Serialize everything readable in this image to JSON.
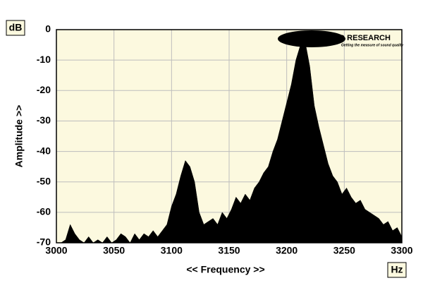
{
  "chart_data": {
    "type": "area",
    "y_unit": "dB",
    "y_label": "Amplitude >>",
    "x_label": "<< Frequency >>",
    "x_unit": "Hz",
    "logo": "MILLER AUDIO RESEARCH",
    "logo_tagline": "Getting the measure of sound quality",
    "x": [
      3000,
      3004,
      3008,
      3012,
      3016,
      3020,
      3024,
      3028,
      3032,
      3036,
      3040,
      3044,
      3048,
      3052,
      3056,
      3060,
      3064,
      3068,
      3072,
      3076,
      3080,
      3084,
      3088,
      3092,
      3096,
      3100,
      3104,
      3108,
      3112,
      3116,
      3120,
      3124,
      3128,
      3132,
      3136,
      3140,
      3144,
      3148,
      3152,
      3156,
      3160,
      3164,
      3168,
      3172,
      3176,
      3180,
      3184,
      3188,
      3192,
      3196,
      3200,
      3204,
      3208,
      3212,
      3216,
      3220,
      3224,
      3228,
      3232,
      3236,
      3240,
      3244,
      3248,
      3252,
      3256,
      3260,
      3264,
      3268,
      3272,
      3276,
      3280,
      3284,
      3288,
      3292,
      3296,
      3300
    ],
    "values": [
      -70,
      -70,
      -69,
      -64,
      -67,
      -69,
      -70,
      -68,
      -70,
      -69,
      -70,
      -68,
      -70,
      -69,
      -67,
      -68,
      -70,
      -67,
      -69,
      -67,
      -68,
      -66,
      -68,
      -66,
      -64,
      -58,
      -54,
      -48,
      -43,
      -45,
      -50,
      -60,
      -64,
      -63,
      -62,
      -64,
      -60,
      -62,
      -59,
      -55,
      -57,
      -54,
      -56,
      -52,
      -50,
      -47,
      -45,
      -40,
      -36,
      -30,
      -24,
      -18,
      -10,
      -5,
      -4,
      -12,
      -25,
      -32,
      -38,
      -44,
      -48,
      -50,
      -54,
      -52,
      -55,
      -57,
      -56,
      -59,
      -60,
      -61,
      -62,
      -64,
      -63,
      -66,
      -65,
      -68
    ],
    "color": "#000000",
    "xlim": [
      3000,
      3300
    ],
    "xticks": [
      3000,
      3050,
      3100,
      3150,
      3200,
      3250,
      3300
    ],
    "ylim": [
      -70,
      0
    ],
    "yticks": [
      0,
      -10,
      -20,
      -30,
      -40,
      -50,
      -60,
      -70
    ],
    "grid": true
  }
}
